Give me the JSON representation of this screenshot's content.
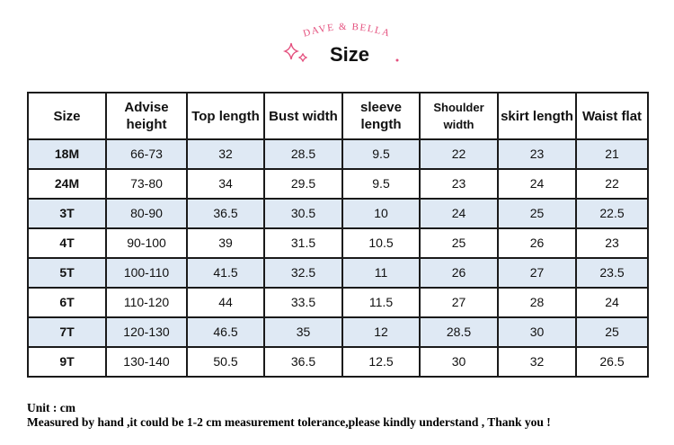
{
  "header": {
    "brand": "DAVE & BELLA",
    "title": "Size"
  },
  "table": {
    "header": [
      "Size",
      "Advise height",
      "Top length",
      "Bust width",
      "sleeve length",
      "Shoulder width",
      "skirt length",
      "Waist flat"
    ],
    "rows": [
      [
        "18M",
        "66-73",
        "32",
        "28.5",
        "9.5",
        "22",
        "23",
        "21"
      ],
      [
        "24M",
        "73-80",
        "34",
        "29.5",
        "9.5",
        "23",
        "24",
        "22"
      ],
      [
        "3T",
        "80-90",
        "36.5",
        "30.5",
        "10",
        "24",
        "25",
        "22.5"
      ],
      [
        "4T",
        "90-100",
        "39",
        "31.5",
        "10.5",
        "25",
        "26",
        "23"
      ],
      [
        "5T",
        "100-110",
        "41.5",
        "32.5",
        "11",
        "26",
        "27",
        "23.5"
      ],
      [
        "6T",
        "110-120",
        "44",
        "33.5",
        "11.5",
        "27",
        "28",
        "24"
      ],
      [
        "7T",
        "120-130",
        "46.5",
        "35",
        "12",
        "28.5",
        "30",
        "25"
      ],
      [
        "9T",
        "130-140",
        "50.5",
        "36.5",
        "12.5",
        "30",
        "32",
        "26.5"
      ]
    ]
  },
  "footer": {
    "unit": "Unit : cm",
    "note": "Measured by hand ,it could be 1-2 cm measurement tolerance,please kindly understand , Thank you !"
  }
}
